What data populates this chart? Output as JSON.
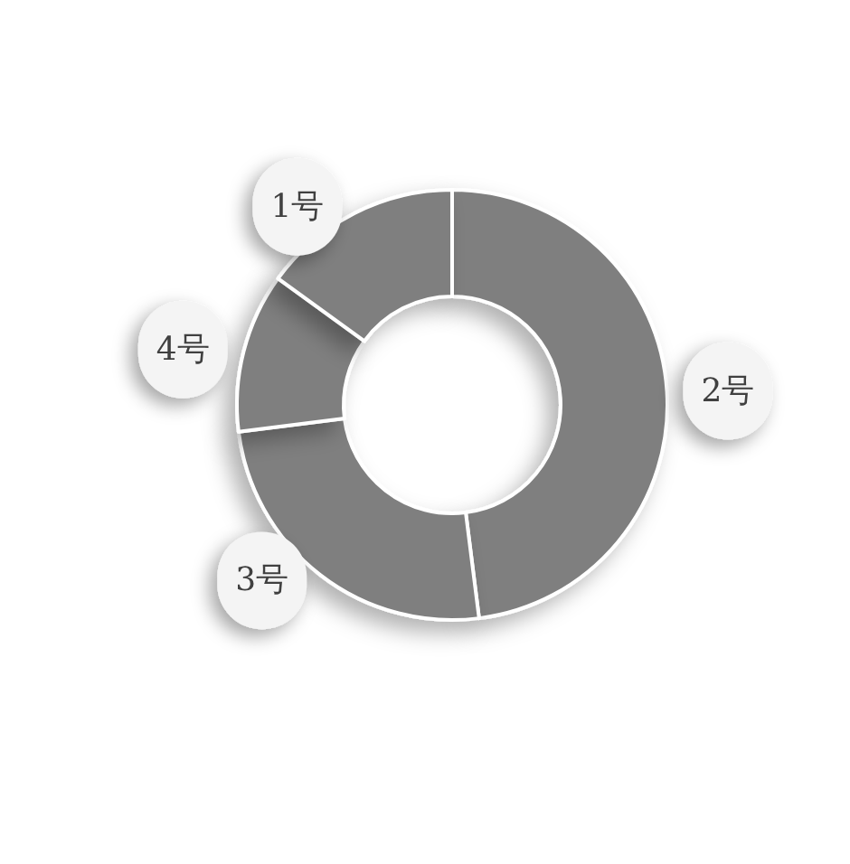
{
  "chart_data": {
    "type": "donut",
    "categories": [
      "2号",
      "3号",
      "4号",
      "1号"
    ],
    "values": [
      48,
      25,
      12,
      15
    ],
    "colors": [
      "#7f7f7f",
      "#7f7f7f",
      "#7f7f7f",
      "#7f7f7f"
    ],
    "legend": false
  }
}
